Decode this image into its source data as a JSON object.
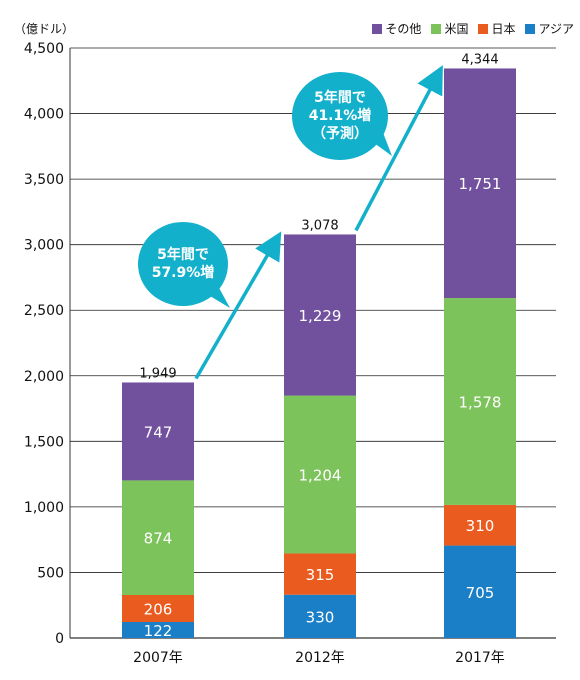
{
  "chart_data": {
    "type": "bar",
    "stacked": true,
    "unit_label": "（億ドル）",
    "categories": [
      "2007年",
      "2012年",
      "2017年"
    ],
    "series": [
      {
        "name": "アジア",
        "values": [
          122,
          330,
          705
        ],
        "color": "#1a7fc6"
      },
      {
        "name": "日本",
        "values": [
          206,
          315,
          310
        ],
        "color": "#ea5b20"
      },
      {
        "name": "米国",
        "values": [
          874,
          1204,
          1578
        ],
        "color": "#7dc35b"
      },
      {
        "name": "その他",
        "values": [
          747,
          1229,
          1751
        ],
        "color": "#71519e"
      }
    ],
    "legend_order": [
      "その他",
      "米国",
      "日本",
      "アジア"
    ],
    "totals": [
      "1,949",
      "3,078",
      "4,344"
    ],
    "value_labels": [
      [
        "122",
        "330",
        "705"
      ],
      [
        "206",
        "315",
        "310"
      ],
      [
        "874",
        "1,204",
        "1,578"
      ],
      [
        "747",
        "1,229",
        "1,751"
      ]
    ],
    "yticks": [
      "0",
      "500",
      "1,000",
      "1,500",
      "2,000",
      "2,500",
      "3,000",
      "3,500",
      "4,000",
      "4,500"
    ],
    "ylim": [
      0,
      4500
    ],
    "grid": true,
    "legend_position": "top-right",
    "annotations": [
      {
        "lines": [
          "5年間で",
          "57.9%増"
        ]
      },
      {
        "lines": [
          "5年間で",
          "41.1%増",
          "（予測）"
        ]
      }
    ],
    "arrow_color": "#13b0cc"
  }
}
